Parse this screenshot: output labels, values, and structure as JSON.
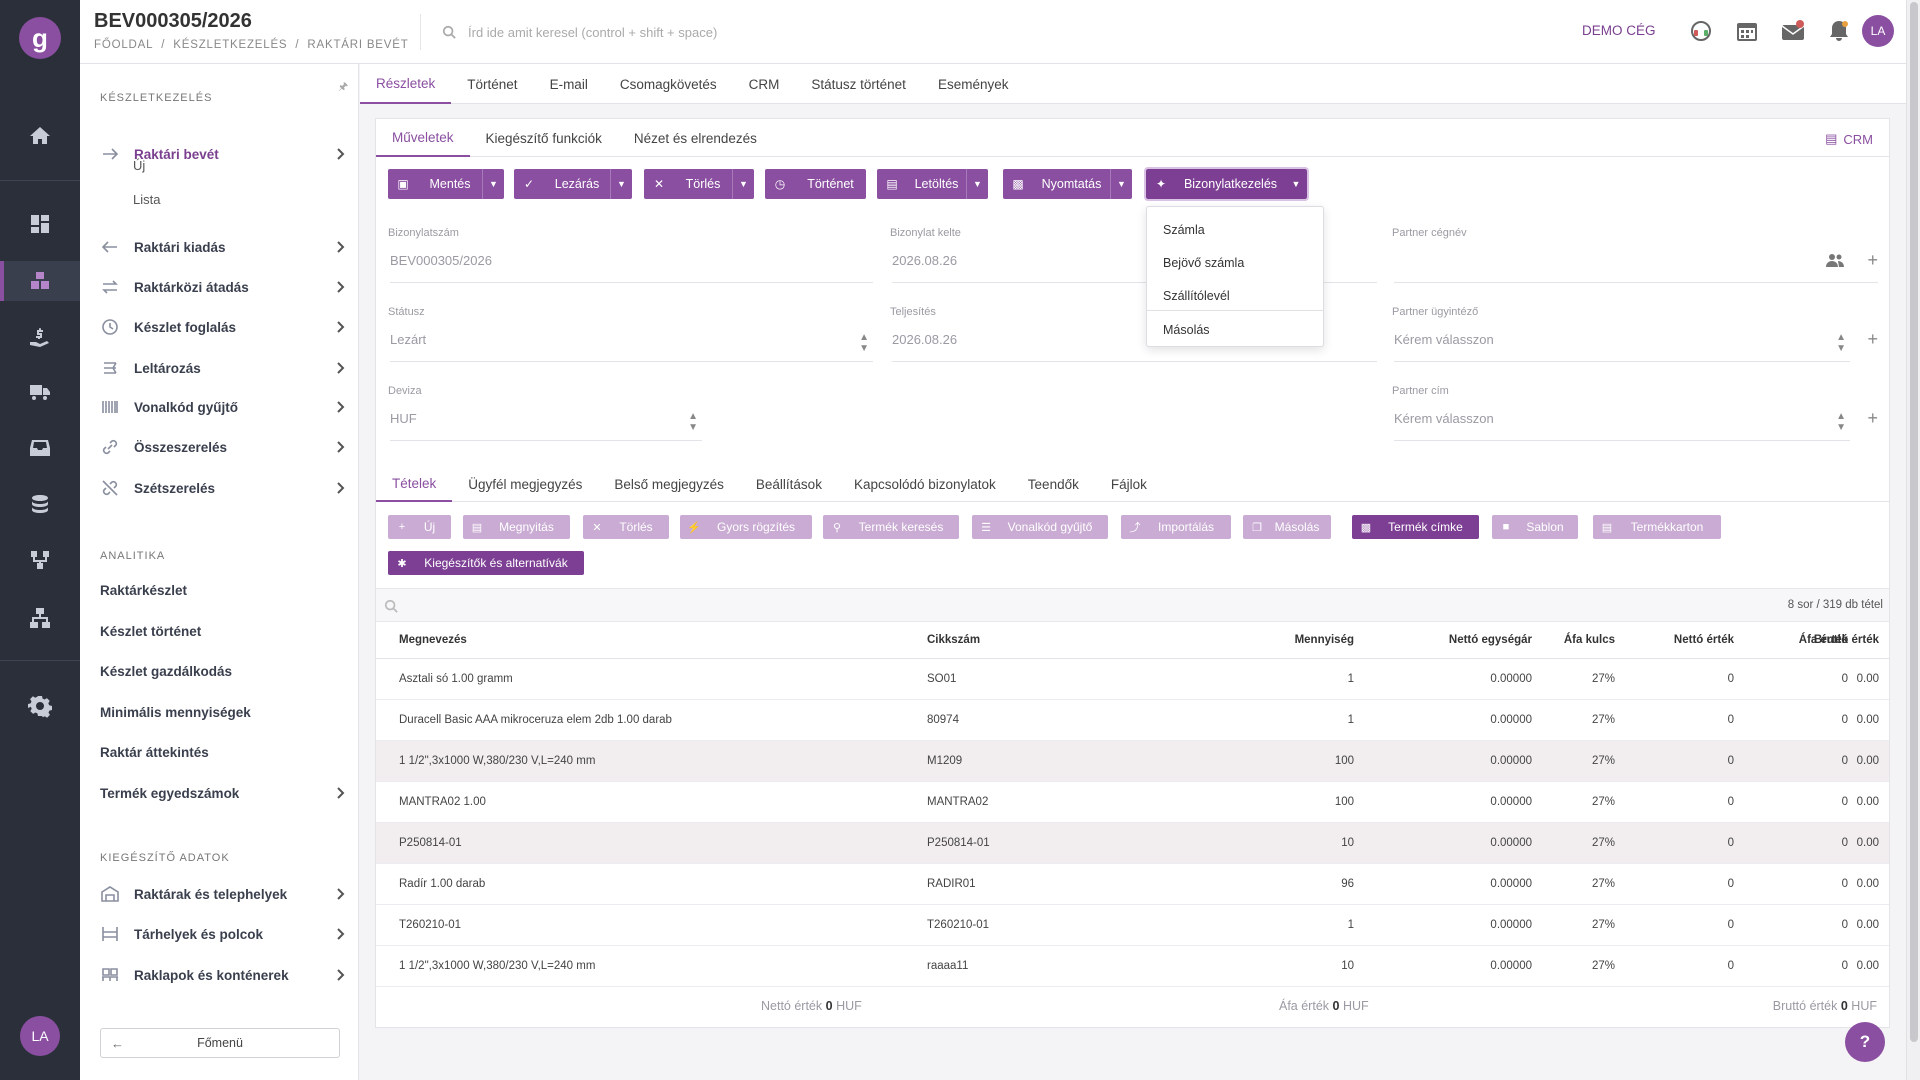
{
  "header": {
    "title": "BEV000305/2026",
    "breadcrumb": [
      "FŐOLDAL",
      "/",
      "KÉSZLETKEZELÉS",
      "/",
      "RAKTÁRI BEVÉT"
    ],
    "search_placeholder": "Írd ide amit keresel (control + shift + space)",
    "company": "DEMO CÉG",
    "avatar": "LA"
  },
  "rail": {
    "logo": "g",
    "avatar": "LA"
  },
  "sidebar": {
    "section_stock": "KÉSZLETKEZELÉS",
    "items": [
      {
        "label": "Raktári bevét"
      },
      {
        "label": "Raktári kiadás"
      },
      {
        "label": "Raktárközi átadás"
      },
      {
        "label": "Készlet foglalás"
      },
      {
        "label": "Leltározás"
      },
      {
        "label": "Vonalkód gyűjtő"
      },
      {
        "label": "Összeszerelés"
      },
      {
        "label": "Szétszerelés"
      }
    ],
    "subitems": [
      "Új",
      "Lista"
    ],
    "section_analytics": "ANALITIKA",
    "analytics": [
      "Raktárkészlet",
      "Készlet történet",
      "Készlet gazdálkodás",
      "Minimális mennyiségek",
      "Raktár áttekintés",
      "Termék egyedszámok"
    ],
    "section_extra": "KIEGÉSZÍTŐ ADATOK",
    "extra": [
      "Raktárak és telephelyek",
      "Tárhelyek és polcok",
      "Raklapok és konténerek"
    ],
    "main_menu": "Főmenü"
  },
  "tabs": [
    "Részletek",
    "Történet",
    "E-mail",
    "Csomagkövetés",
    "CRM",
    "Státusz történet",
    "Események"
  ],
  "subtabs": [
    "Műveletek",
    "Kiegészítő funkciók",
    "Nézet és elrendezés"
  ],
  "crm_link": "CRM",
  "actions": {
    "save": "Mentés",
    "close": "Lezárás",
    "delete": "Törlés",
    "history": "Történet",
    "download": "Letöltés",
    "print": "Nyomtatás",
    "doc": "Bizonylatkezelés"
  },
  "doc_menu": [
    "Számla",
    "Bejövő számla",
    "Szállítólevél",
    "Másolás"
  ],
  "form": {
    "doc_no_label": "Bizonylatszám",
    "doc_no": "BEV000305/2026",
    "doc_date_label": "Bizonylat kelte",
    "doc_date": "2026.08.26",
    "partner_label": "Partner cégnév",
    "partner": "",
    "status_label": "Státusz",
    "status": "Lezárt",
    "completion_label": "Teljesítés",
    "completion": "2026.08.26",
    "agent_label": "Partner ügyintéző",
    "agent": "Kérem válasszon",
    "currency_label": "Deviza",
    "currency": "HUF",
    "address_label": "Partner cím",
    "address": "Kérem válasszon"
  },
  "line_tabs": [
    "Tételek",
    "Ügyfél megjegyzés",
    "Belső megjegyzés",
    "Beállítások",
    "Kapcsolódó bizonylatok",
    "Teendők",
    "Fájlok"
  ],
  "line_buttons": [
    "Új",
    "Megnyitás",
    "Törlés",
    "Gyors rögzítés",
    "Termék keresés",
    "Vonalkód gyűjtő",
    "Importálás",
    "Másolás",
    "Termék címke",
    "Sablon",
    "Termékkarton",
    "Kiegészítők és alternatívák"
  ],
  "table": {
    "count": "8 sor / 319 db tétel",
    "columns": [
      "Megnevezés",
      "Cikkszám",
      "Mennyiség",
      "Nettó egységár",
      "Áfa kulcs",
      "Nettó érték",
      "Áfa érték",
      "Bruttó érték"
    ],
    "rows": [
      [
        "Asztali só 1.00 gramm",
        "SO01",
        "1",
        "0.00000",
        "27%",
        "0",
        "0",
        "0.00"
      ],
      [
        "Duracell Basic AAA mikroceruza elem 2db 1.00 darab",
        "80974",
        "1",
        "0.00000",
        "27%",
        "0",
        "0",
        "0.00"
      ],
      [
        "1 1/2\",3x1000 W,380/230 V,L=240 mm",
        "M1209",
        "100",
        "0.00000",
        "27%",
        "0",
        "0",
        "0.00"
      ],
      [
        "MANTRA02 1.00",
        "MANTRA02",
        "100",
        "0.00000",
        "27%",
        "0",
        "0",
        "0.00"
      ],
      [
        "P250814-01",
        "P250814-01",
        "10",
        "0.00000",
        "27%",
        "0",
        "0",
        "0.00"
      ],
      [
        "Radír 1.00 darab",
        "RADIR01",
        "96",
        "0.00000",
        "27%",
        "0",
        "0",
        "0.00"
      ],
      [
        "T260210-01",
        "T260210-01",
        "1",
        "0.00000",
        "27%",
        "0",
        "0",
        "0.00"
      ],
      [
        "1 1/2\",3x1000 W,380/230 V,L=240 mm",
        "raaaa11",
        "10",
        "0.00000",
        "27%",
        "0",
        "0",
        "0.00"
      ]
    ],
    "totals": {
      "net_label": "Nettó érték",
      "net": "0",
      "net_cur": "HUF",
      "vat_label": "Áfa érték",
      "vat": "0",
      "vat_cur": "HUF",
      "gross_label": "Bruttó érték",
      "gross": "0",
      "gross_cur": "HUF"
    }
  },
  "help": "?",
  "colors": {
    "accent": "#8a4fa0",
    "rail": "#2a2f3a"
  }
}
